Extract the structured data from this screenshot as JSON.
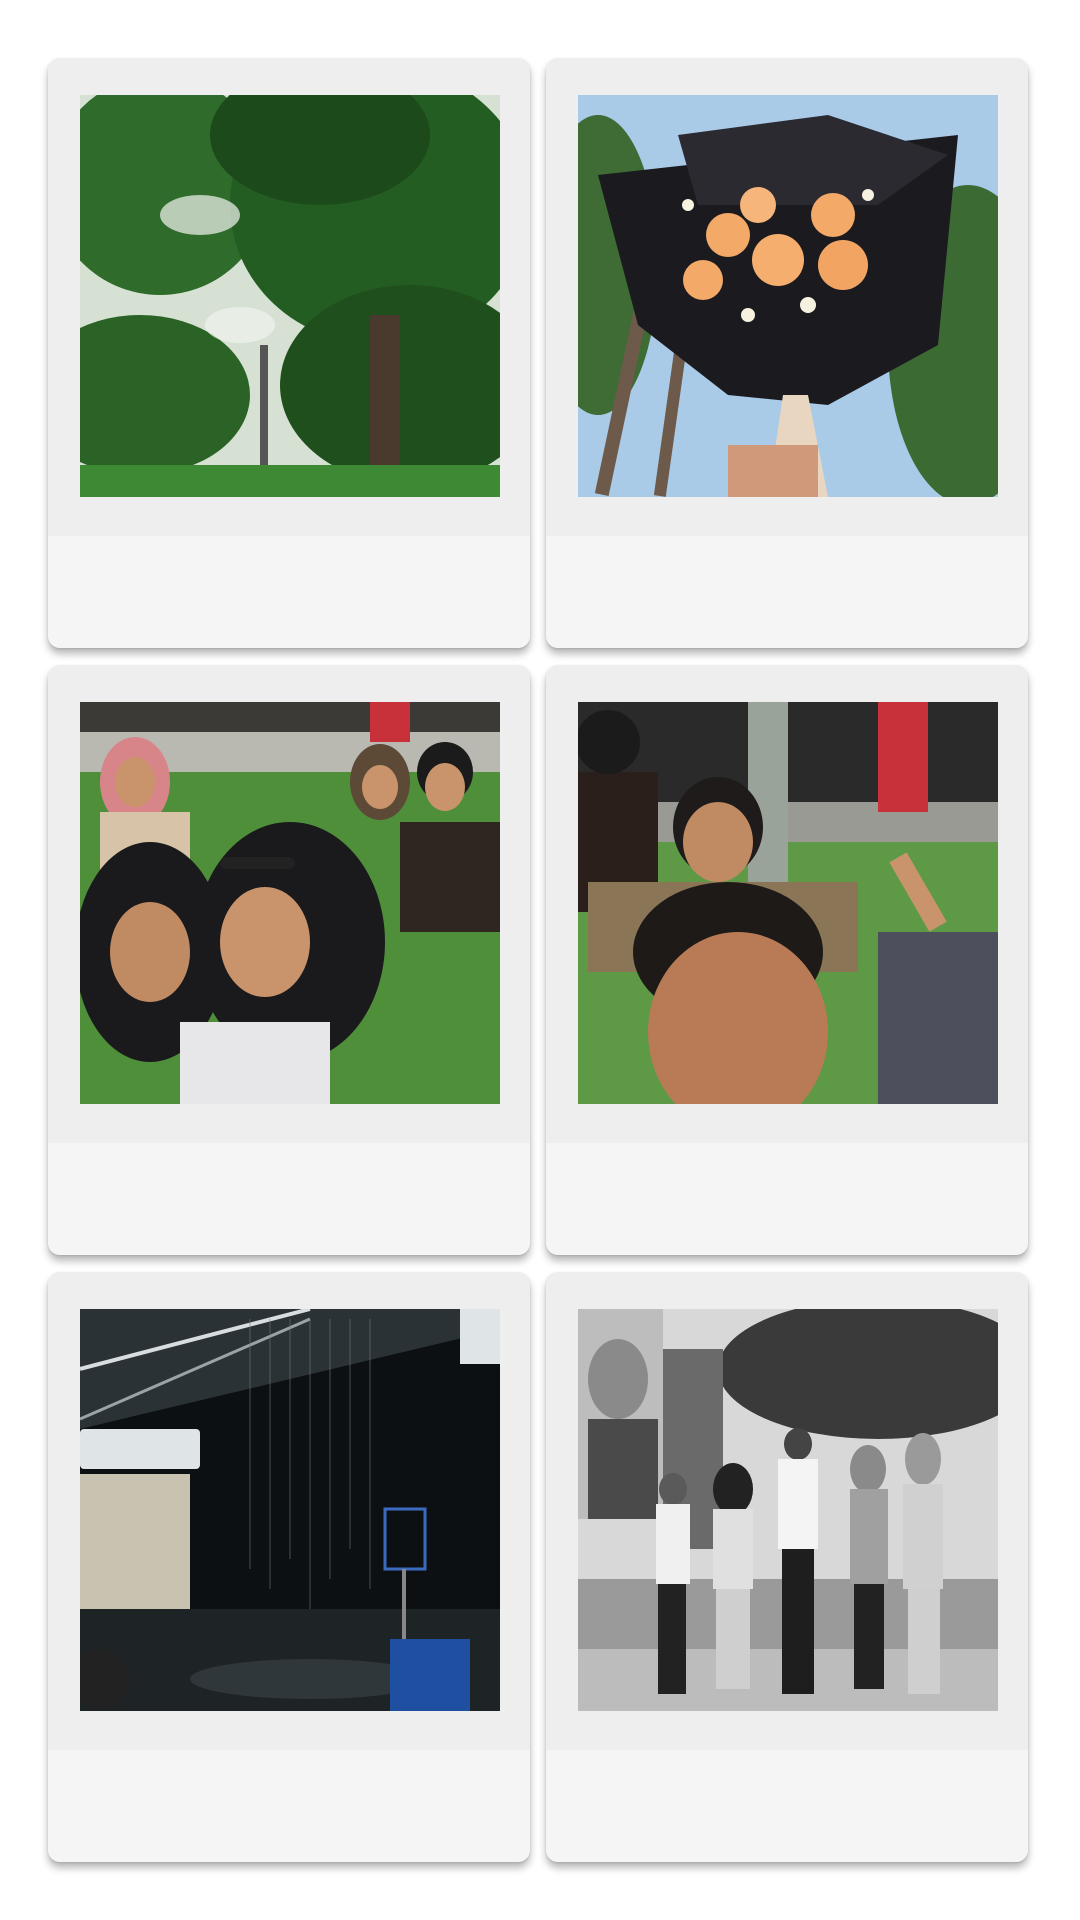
{
  "photos": [
    {
      "subject": "trees",
      "palette": {
        "sky": "#f4f6f2",
        "leaf": "#2f6b2a",
        "leaf_dark": "#1d4a1b",
        "trunk": "#4a3a2e"
      }
    },
    {
      "subject": "bouquet",
      "palette": {
        "sky": "#a9cbe8",
        "wrap": "#1b1b1f",
        "rose": "#f3a968",
        "palm": "#3f6b35"
      }
    },
    {
      "subject": "group-selfie-hijab",
      "palette": {
        "grass": "#4f8f3a",
        "hijab_black": "#1a1a1c",
        "hijab_pink": "#d8858a",
        "skin": "#c9946c"
      }
    },
    {
      "subject": "group-selfie-man",
      "palette": {
        "grass": "#5e9a45",
        "building": "#2a2a2a",
        "red_pillar": "#c8313a",
        "skin": "#b87b55"
      }
    },
    {
      "subject": "rain-night",
      "palette": {
        "night": "#0d1012",
        "roof": "#2b3236",
        "bin": "#1f4fa0",
        "sign": "#dfe4e6"
      }
    },
    {
      "subject": "group-bw",
      "palette": {
        "sky": "#d8d8d8",
        "tree": "#3a3a3a",
        "ground": "#9a9a9a"
      }
    }
  ]
}
